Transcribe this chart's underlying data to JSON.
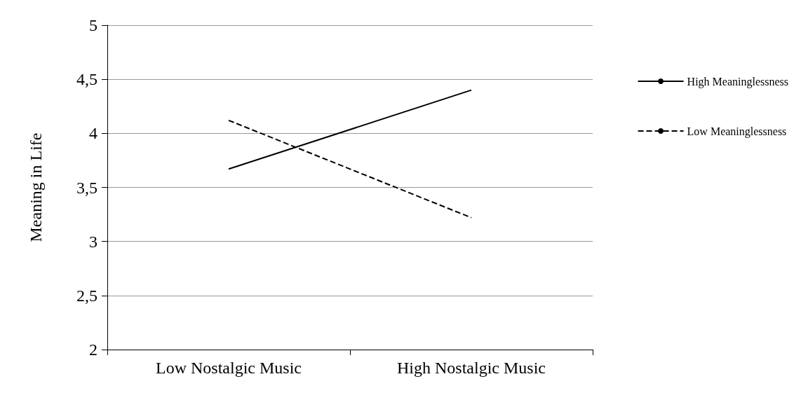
{
  "chart_data": {
    "type": "line",
    "ylabel": "Meaning in Life",
    "categories": [
      "Low Nostalgic Music",
      "High Nostalgic Music"
    ],
    "series": [
      {
        "name": "High Meaninglessness",
        "color": "#000000",
        "values": [
          3.67,
          4.4
        ],
        "line_style": "solid"
      },
      {
        "name": "Low Meaninglessness",
        "color": "#000000",
        "values": [
          4.12,
          3.22
        ],
        "line_style": "dashed"
      }
    ],
    "ylim": [
      2,
      5
    ],
    "yticks": [
      2,
      {
        "value": 2.5,
        "label": "2,5"
      },
      3,
      {
        "value": 3.5,
        "label": "3,5"
      },
      4,
      {
        "value": 4.5,
        "label": "4,5"
      },
      5
    ],
    "grid": "y",
    "legend": "right",
    "marker": "none"
  }
}
